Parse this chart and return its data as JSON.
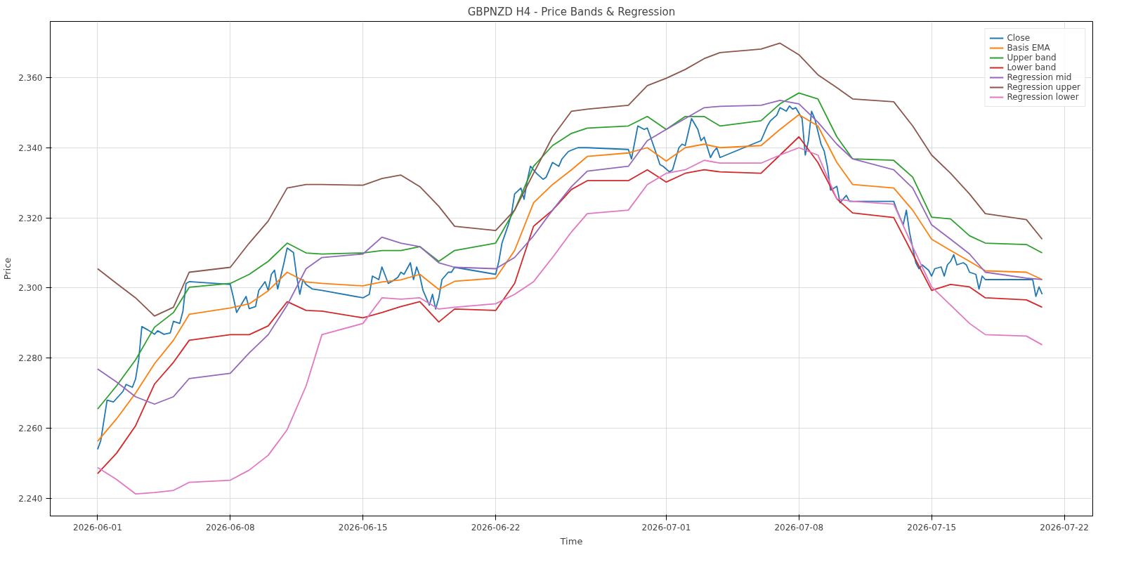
{
  "chart_data": {
    "type": "line",
    "title": "GBPNZD H4 - Price Bands & Regression",
    "xlabel": "Time",
    "ylabel": "Price",
    "xlim": [
      "2026-05-29T12:00",
      "2026-07-23T12:00"
    ],
    "xticks": [
      "2026-06-01",
      "2026-06-08",
      "2026-06-15",
      "2026-06-22",
      "2026-07-01",
      "2026-07-08",
      "2026-07-15",
      "2026-07-22"
    ],
    "ylim": [
      2.235,
      2.376
    ],
    "yticks": [
      {
        "value": 2.24,
        "label": "2.240"
      },
      {
        "value": 2.26,
        "label": "2.260"
      },
      {
        "value": 2.28,
        "label": "2.280"
      },
      {
        "value": 2.3,
        "label": "2.300"
      },
      {
        "value": 2.32,
        "label": "2.320"
      },
      {
        "value": 2.34,
        "label": "2.340"
      },
      {
        "value": 2.36,
        "label": "2.360"
      }
    ],
    "grid": true,
    "legend": "top right",
    "line_style": "solid",
    "marker": "none",
    "x": [
      "2026-06-01T00:00",
      "2026-06-02T00:00",
      "2026-06-03T00:00",
      "2026-06-04T00:00",
      "2026-06-05T00:00",
      "2026-06-05T20:00",
      "2026-06-08T00:00",
      "2026-06-09T00:00",
      "2026-06-10T00:00",
      "2026-06-11T00:00",
      "2026-06-12T00:00",
      "2026-06-12T20:00",
      "2026-06-15T00:00",
      "2026-06-16T00:00",
      "2026-06-17T00:00",
      "2026-06-18T00:00",
      "2026-06-19T00:00",
      "2026-06-19T20:00",
      "2026-06-22T00:00",
      "2026-06-23T00:00",
      "2026-06-24T00:00",
      "2026-06-25T00:00",
      "2026-06-26T00:00",
      "2026-06-26T20:00",
      "2026-06-29T00:00",
      "2026-06-30T00:00",
      "2026-07-01T00:00",
      "2026-07-02T00:00",
      "2026-07-03T00:00",
      "2026-07-03T20:00",
      "2026-07-06T00:00",
      "2026-07-07T00:00",
      "2026-07-08T00:00",
      "2026-07-09T00:00",
      "2026-07-10T00:00",
      "2026-07-10T20:00",
      "2026-07-13T00:00",
      "2026-07-14T00:00",
      "2026-07-15T00:00",
      "2026-07-16T00:00",
      "2026-07-17T00:00",
      "2026-07-17T20:00",
      "2026-07-20T00:00",
      "2026-07-20T20:00"
    ],
    "series": [
      {
        "name": "Close",
        "color": "#1f77b4",
        "x": [
          "2026-06-01T00:00",
          "2026-06-01T04:00",
          "2026-06-01T12:00",
          "2026-06-01T20:00",
          "2026-06-02T00:00",
          "2026-06-02T08:00",
          "2026-06-02T12:00",
          "2026-06-02T20:00",
          "2026-06-03T00:00",
          "2026-06-03T04:00",
          "2026-06-03T08:00",
          "2026-06-03T16:00",
          "2026-06-04T00:00",
          "2026-06-04T04:00",
          "2026-06-04T12:00",
          "2026-06-04T20:00",
          "2026-06-05T00:00",
          "2026-06-05T08:00",
          "2026-06-05T12:00",
          "2026-06-05T16:00",
          "2026-06-05T20:00",
          "2026-06-08T00:00",
          "2026-06-08T04:00",
          "2026-06-08T08:00",
          "2026-06-08T16:00",
          "2026-06-08T20:00",
          "2026-06-09T00:00",
          "2026-06-09T08:00",
          "2026-06-09T12:00",
          "2026-06-09T20:00",
          "2026-06-10T00:00",
          "2026-06-10T04:00",
          "2026-06-10T08:00",
          "2026-06-10T12:00",
          "2026-06-10T16:00",
          "2026-06-10T20:00",
          "2026-06-11T00:00",
          "2026-06-11T08:00",
          "2026-06-11T12:00",
          "2026-06-11T16:00",
          "2026-06-11T20:00",
          "2026-06-12T00:00",
          "2026-06-12T08:00",
          "2026-06-12T20:00",
          "2026-06-15T00:00",
          "2026-06-15T08:00",
          "2026-06-15T12:00",
          "2026-06-15T20:00",
          "2026-06-16T00:00",
          "2026-06-16T08:00",
          "2026-06-16T12:00",
          "2026-06-16T20:00",
          "2026-06-17T00:00",
          "2026-06-17T04:00",
          "2026-06-17T12:00",
          "2026-06-17T16:00",
          "2026-06-17T20:00",
          "2026-06-18T00:00",
          "2026-06-18T04:00",
          "2026-06-18T12:00",
          "2026-06-18T16:00",
          "2026-06-18T20:00",
          "2026-06-19T00:00",
          "2026-06-19T04:00",
          "2026-06-19T12:00",
          "2026-06-19T16:00",
          "2026-06-19T20:00",
          "2026-06-22T00:00",
          "2026-06-22T04:00",
          "2026-06-22T08:00",
          "2026-06-22T16:00",
          "2026-06-22T20:00",
          "2026-06-23T00:00",
          "2026-06-23T08:00",
          "2026-06-23T12:00",
          "2026-06-23T16:00",
          "2026-06-23T20:00",
          "2026-06-24T04:00",
          "2026-06-24T12:00",
          "2026-06-24T16:00",
          "2026-06-25T00:00",
          "2026-06-25T08:00",
          "2026-06-25T12:00",
          "2026-06-25T20:00",
          "2026-06-26T00:00",
          "2026-06-26T08:00",
          "2026-06-26T20:00",
          "2026-06-29T00:00",
          "2026-06-29T04:00",
          "2026-06-29T12:00",
          "2026-06-29T20:00",
          "2026-06-30T00:00",
          "2026-06-30T04:00",
          "2026-06-30T12:00",
          "2026-06-30T16:00",
          "2026-06-30T20:00",
          "2026-07-01T04:00",
          "2026-07-01T08:00",
          "2026-07-01T16:00",
          "2026-07-01T20:00",
          "2026-07-02T00:00",
          "2026-07-02T08:00",
          "2026-07-02T16:00",
          "2026-07-02T20:00",
          "2026-07-03T00:00",
          "2026-07-03T08:00",
          "2026-07-03T12:00",
          "2026-07-03T16:00",
          "2026-07-03T20:00",
          "2026-07-06T00:00",
          "2026-07-06T08:00",
          "2026-07-06T12:00",
          "2026-07-06T20:00",
          "2026-07-07T00:00",
          "2026-07-07T08:00",
          "2026-07-07T12:00",
          "2026-07-07T16:00",
          "2026-07-07T20:00",
          "2026-07-08T04:00",
          "2026-07-08T08:00",
          "2026-07-08T12:00",
          "2026-07-08T16:00",
          "2026-07-08T20:00",
          "2026-07-09T04:00",
          "2026-07-09T08:00",
          "2026-07-09T12:00",
          "2026-07-09T16:00",
          "2026-07-10T00:00",
          "2026-07-10T04:00",
          "2026-07-10T12:00",
          "2026-07-10T16:00",
          "2026-07-10T20:00",
          "2026-07-13T00:00",
          "2026-07-13T04:00",
          "2026-07-13T12:00",
          "2026-07-13T16:00",
          "2026-07-13T20:00",
          "2026-07-14T04:00",
          "2026-07-14T08:00",
          "2026-07-14T12:00",
          "2026-07-14T20:00",
          "2026-07-15T00:00",
          "2026-07-15T04:00",
          "2026-07-15T12:00",
          "2026-07-15T16:00",
          "2026-07-15T20:00",
          "2026-07-16T00:00",
          "2026-07-16T04:00",
          "2026-07-16T08:00",
          "2026-07-16T16:00",
          "2026-07-16T20:00",
          "2026-07-17T00:00",
          "2026-07-17T08:00",
          "2026-07-17T12:00",
          "2026-07-17T16:00",
          "2026-07-17T20:00",
          "2026-07-20T00:00",
          "2026-07-20T08:00",
          "2026-07-20T12:00",
          "2026-07-20T16:00",
          "2026-07-20T20:00"
        ],
        "values": [
          2.254,
          2.2565,
          2.268,
          2.2675,
          2.2685,
          2.2705,
          2.2725,
          2.2717,
          2.274,
          2.2795,
          2.289,
          2.288,
          2.2868,
          2.2878,
          2.2868,
          2.2872,
          2.2905,
          2.2899,
          2.2934,
          2.3013,
          2.3018,
          2.301,
          2.2972,
          2.293,
          2.2961,
          2.2976,
          2.2941,
          2.2947,
          2.2993,
          2.3018,
          2.2993,
          2.3039,
          2.3051,
          2.2997,
          2.3034,
          2.3072,
          2.3114,
          2.3101,
          2.3034,
          2.2982,
          2.3024,
          2.301,
          2.2997,
          2.2993,
          2.2972,
          2.2982,
          2.3034,
          2.3024,
          2.306,
          2.3013,
          2.3018,
          2.303,
          2.3045,
          2.3039,
          2.3072,
          2.3024,
          2.306,
          2.3034,
          2.2993,
          2.2951,
          2.2982,
          2.294,
          2.2972,
          2.3024,
          2.3045,
          2.3045,
          2.3059,
          2.3039,
          2.3076,
          2.3128,
          2.318,
          2.3211,
          2.3268,
          2.3285,
          2.3253,
          2.3306,
          2.3347,
          2.3326,
          2.331,
          2.3316,
          2.3358,
          2.3347,
          2.3368,
          2.3389,
          2.3393,
          2.34,
          2.34,
          2.3395,
          2.3368,
          2.3462,
          2.3452,
          2.3456,
          2.3431,
          2.3379,
          2.3352,
          2.3347,
          2.3331,
          2.3337,
          2.34,
          2.341,
          2.3406,
          2.3483,
          2.3452,
          2.342,
          2.343,
          2.3372,
          2.3389,
          2.34,
          2.3372,
          2.342,
          2.3462,
          2.3477,
          2.3493,
          2.3514,
          2.3504,
          2.3519,
          2.351,
          2.3514,
          2.3483,
          2.3379,
          2.342,
          2.3504,
          2.3483,
          2.341,
          2.339,
          2.3347,
          2.3279,
          2.329,
          2.3243,
          2.3264,
          2.3247,
          2.3247,
          2.3247,
          2.3222,
          2.318,
          2.3222,
          2.3159,
          2.3072,
          2.3055,
          2.3066,
          2.3051,
          2.3034,
          2.3055,
          2.306,
          2.3034,
          2.3066,
          2.3076,
          2.3095,
          2.3066,
          2.3072,
          2.3066,
          2.3045,
          2.3039,
          2.2997,
          2.3034,
          2.3024,
          2.3024,
          2.3024,
          2.2976,
          2.3003,
          2.2982
        ]
      },
      {
        "name": "Basis EMA",
        "color": "#ff7f0e",
        "values": [
          2.2563,
          2.2627,
          2.27,
          2.2784,
          2.2851,
          2.2925,
          2.2943,
          2.2955,
          2.2992,
          2.3045,
          2.3017,
          2.3013,
          2.3006,
          2.3017,
          2.3023,
          2.3039,
          2.2996,
          2.3019,
          2.3028,
          2.3107,
          2.3243,
          2.3295,
          2.3337,
          2.3375,
          2.3385,
          2.34,
          2.3362,
          2.34,
          2.341,
          2.34,
          2.3406,
          2.3452,
          2.3494,
          2.3462,
          2.3358,
          2.3295,
          2.3285,
          2.3222,
          2.3139,
          2.3107,
          2.3076,
          2.3049,
          2.3045,
          2.3024
        ]
      },
      {
        "name": "Upper band",
        "color": "#2ca02c",
        "values": [
          2.2655,
          2.2721,
          2.2795,
          2.2888,
          2.293,
          2.3002,
          2.3013,
          2.3039,
          2.3076,
          2.3128,
          2.31,
          2.3097,
          2.31,
          2.3107,
          2.3107,
          2.3118,
          2.3076,
          2.3107,
          2.3128,
          2.3222,
          2.3347,
          2.3406,
          2.3441,
          2.3456,
          2.3462,
          2.3489,
          2.3452,
          2.3489,
          2.3489,
          2.3462,
          2.3477,
          2.3525,
          2.3556,
          2.3539,
          2.3431,
          2.3368,
          2.3364,
          2.3316,
          2.3202,
          2.3197,
          2.3149,
          2.3128,
          2.3124,
          2.31
        ]
      },
      {
        "name": "Lower band",
        "color": "#d62728",
        "values": [
          2.2471,
          2.2529,
          2.2607,
          2.2726,
          2.2788,
          2.2851,
          2.2867,
          2.2867,
          2.2892,
          2.2961,
          2.2936,
          2.2934,
          2.2915,
          2.293,
          2.2947,
          2.2961,
          2.2903,
          2.294,
          2.2936,
          2.3013,
          2.3176,
          2.3222,
          2.3281,
          2.3306,
          2.3306,
          2.3337,
          2.3302,
          2.3327,
          2.3337,
          2.3331,
          2.3327,
          2.3379,
          2.3431,
          2.3358,
          2.3254,
          2.3214,
          2.3201,
          2.3097,
          2.2993,
          2.301,
          2.3003,
          2.2972,
          2.2966,
          2.2945
        ]
      },
      {
        "name": "Regression mid",
        "color": "#9467bd",
        "values": [
          2.2769,
          2.2732,
          2.269,
          2.2669,
          2.269,
          2.2742,
          2.2757,
          2.2815,
          2.2867,
          2.2951,
          2.3055,
          2.3087,
          2.3097,
          2.3145,
          2.3128,
          2.3118,
          2.3072,
          2.3059,
          2.3055,
          2.3087,
          2.3149,
          2.3222,
          2.3289,
          2.3333,
          2.3347,
          2.342,
          2.3452,
          2.3483,
          2.3514,
          2.3518,
          2.3521,
          2.3535,
          2.3525,
          2.3473,
          2.341,
          2.3368,
          2.3337,
          2.3285,
          2.318,
          2.3139,
          2.3097,
          2.3045,
          2.3028,
          2.3024
        ]
      },
      {
        "name": "Regression upper",
        "color": "#8c564b",
        "values": [
          2.3055,
          2.3013,
          2.2972,
          2.292,
          2.2945,
          2.3045,
          2.3059,
          2.3128,
          2.3191,
          2.3285,
          2.3295,
          2.3295,
          2.3293,
          2.3312,
          2.3322,
          2.3289,
          2.3233,
          2.3176,
          2.3164,
          2.3222,
          2.3327,
          2.3431,
          2.3504,
          2.351,
          2.3521,
          2.3577,
          2.3598,
          2.3623,
          2.3654,
          2.3671,
          2.3681,
          2.3698,
          2.3665,
          2.3608,
          2.3571,
          2.3539,
          2.3531,
          2.3462,
          2.3379,
          2.3327,
          2.3268,
          2.3212,
          2.3195,
          2.3139
        ]
      },
      {
        "name": "Regression lower",
        "color": "#e377c2",
        "values": [
          2.2488,
          2.2454,
          2.2413,
          2.2417,
          2.2423,
          2.2446,
          2.2452,
          2.2481,
          2.2523,
          2.2596,
          2.2721,
          2.2867,
          2.2899,
          2.2972,
          2.2968,
          2.2972,
          2.294,
          2.2945,
          2.2955,
          2.2982,
          2.3018,
          2.3087,
          2.316,
          2.3212,
          2.3222,
          2.3295,
          2.3327,
          2.3337,
          2.3364,
          2.3356,
          2.3356,
          2.3379,
          2.34,
          2.3379,
          2.3254,
          2.3247,
          2.3239,
          2.3118,
          2.3003,
          2.2951,
          2.2899,
          2.2867,
          2.2863,
          2.2838
        ]
      }
    ]
  }
}
